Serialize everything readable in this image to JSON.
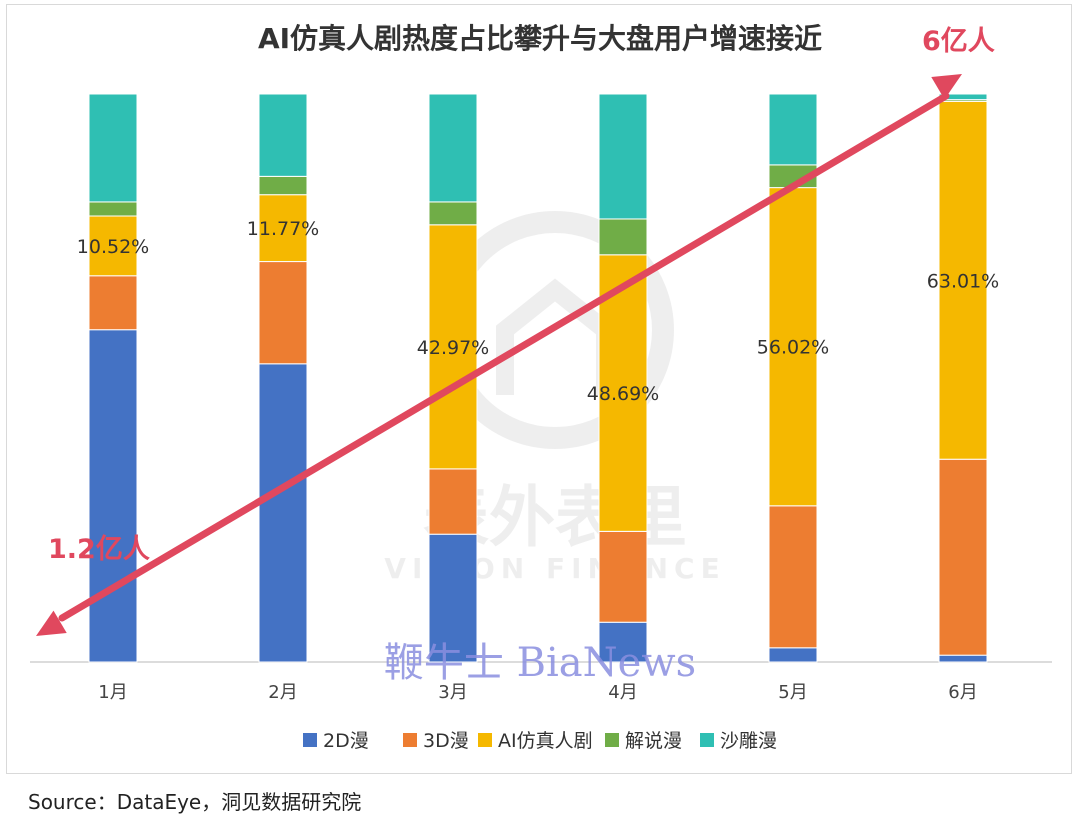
{
  "chart_data": {
    "type": "bar",
    "stacked": true,
    "normalized": true,
    "title": "AI仿真人剧热度占比攀升与大盘用户增速接近",
    "categories": [
      "1月",
      "2月",
      "3月",
      "4月",
      "5月",
      "6月"
    ],
    "series": [
      {
        "name": "2D漫",
        "color": "#4472C4",
        "values": [
          58.5,
          52.5,
          22.5,
          7.0,
          2.5,
          1.2
        ]
      },
      {
        "name": "3D漫",
        "color": "#ED7D31",
        "values": [
          9.5,
          18.0,
          11.5,
          16.0,
          25.0,
          34.5
        ]
      },
      {
        "name": "AI仿真人剧",
        "color": "#F5B800",
        "values": [
          10.52,
          11.77,
          42.97,
          48.69,
          56.02,
          63.01
        ]
      },
      {
        "name": "解说漫",
        "color": "#70AD47",
        "values": [
          2.48,
          3.23,
          4.03,
          6.31,
          4.0,
          0.3
        ]
      },
      {
        "name": "沙雕漫",
        "color": "#2FBFB3",
        "values": [
          19.0,
          14.5,
          19.0,
          22.0,
          12.48,
          0.99
        ]
      }
    ],
    "data_labels": [
      "10.52%",
      "11.77%",
      "42.97%",
      "48.69%",
      "56.02%",
      "63.01%"
    ],
    "ylim": [
      0,
      100
    ],
    "legend_position": "bottom",
    "trend": {
      "color": "#E0485E",
      "start_label": "1.2亿人",
      "end_label": "6亿人"
    }
  },
  "watermark": {
    "logo_text": "表外表里",
    "logo_sub": "VISION FINANCE",
    "brand": "鞭牛士 BiaNews"
  },
  "source": "Source：DataEye，洞见数据研究院"
}
